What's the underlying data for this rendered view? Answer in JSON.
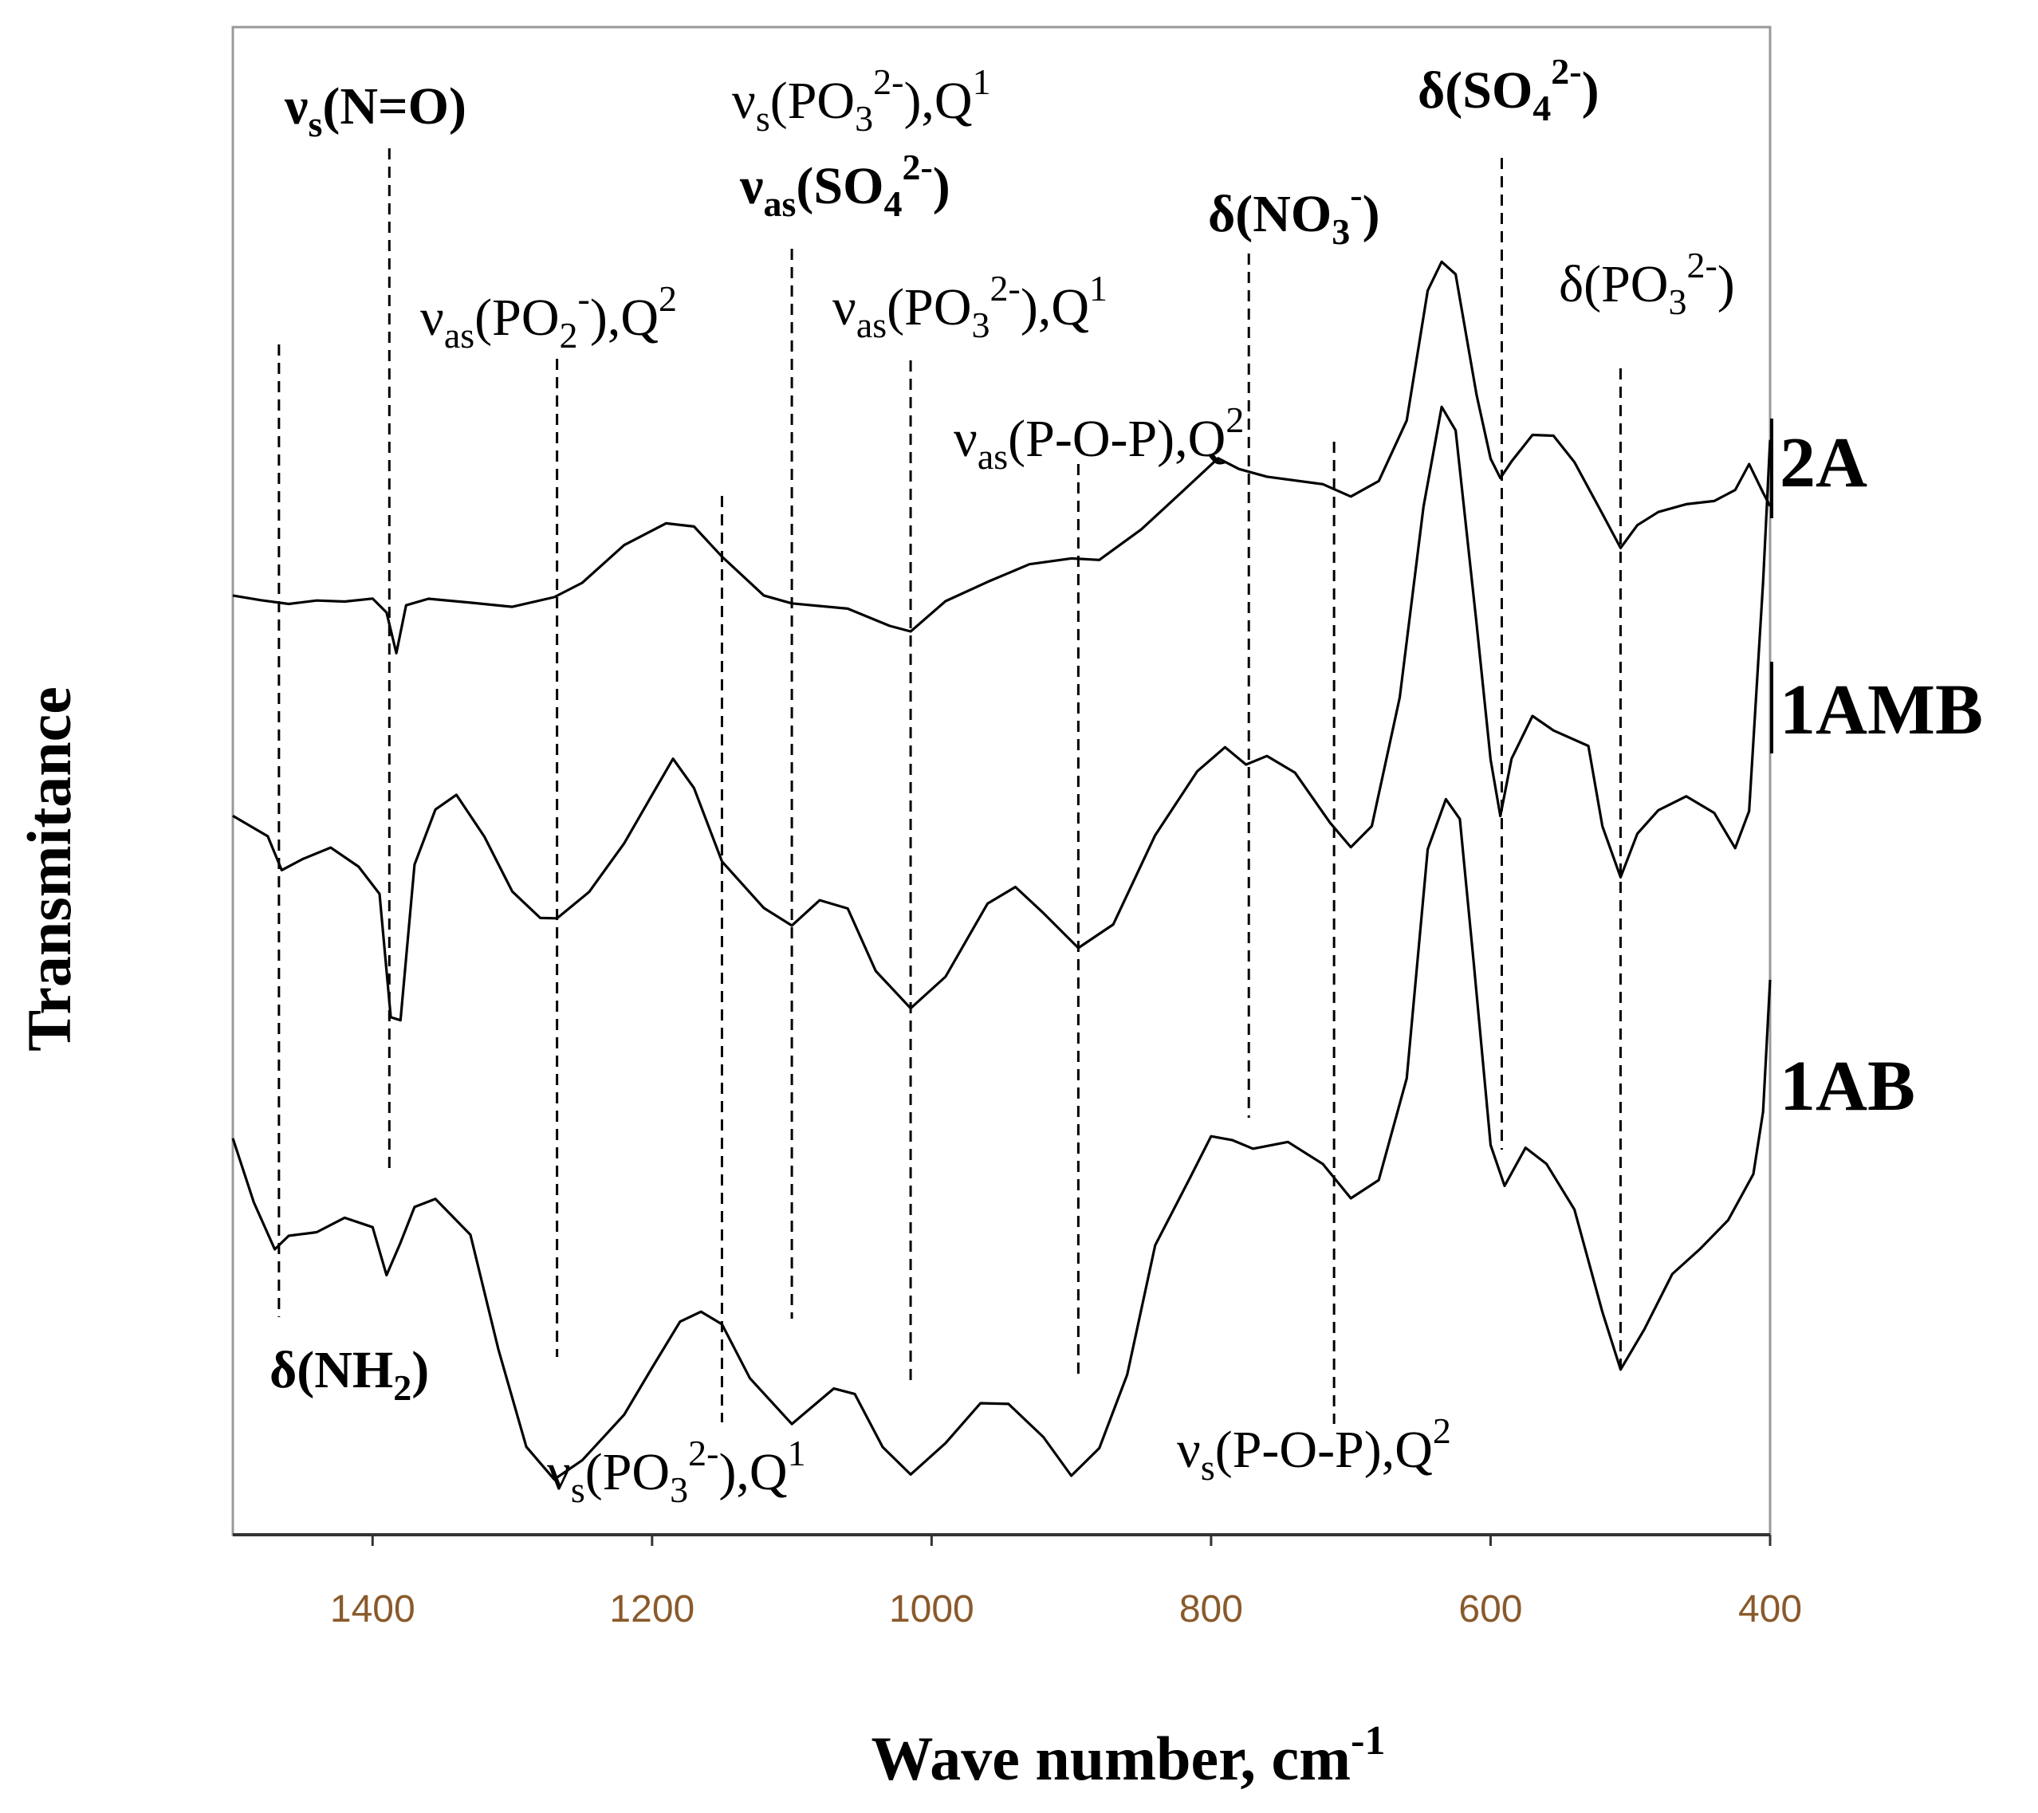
{
  "chart_data": {
    "type": "line",
    "xlabel": "Wave number, cm",
    "xlabel_sup": "-1",
    "ylabel": "Transmitance",
    "xlim": [
      1500,
      400
    ],
    "x_reversed": true,
    "xticks": [
      1400,
      1200,
      1000,
      800,
      600,
      400
    ],
    "grid": false,
    "series": [
      {
        "name": "2A",
        "points": [
          [
            1500,
            -0.32
          ],
          [
            1480,
            -0.36
          ],
          [
            1460,
            -0.4
          ],
          [
            1440,
            -0.38
          ],
          [
            1420,
            -0.4
          ],
          [
            1400,
            -0.38
          ],
          [
            1390,
            -0.47
          ],
          [
            1383,
            -0.86
          ],
          [
            1376,
            -0.43
          ],
          [
            1360,
            -0.38
          ],
          [
            1330,
            -0.4
          ],
          [
            1300,
            -0.42
          ],
          [
            1270,
            -0.36
          ],
          [
            1250,
            -0.22
          ],
          [
            1220,
            0.1
          ],
          [
            1190,
            0.32
          ],
          [
            1170,
            0.28
          ],
          [
            1150,
            0.0
          ],
          [
            1120,
            -0.32
          ],
          [
            1100,
            -0.4
          ],
          [
            1060,
            -0.47
          ],
          [
            1030,
            -0.6
          ],
          [
            1015,
            -0.64
          ],
          [
            990,
            -0.4
          ],
          [
            960,
            -0.2
          ],
          [
            930,
            -0.05
          ],
          [
            900,
            -0.02
          ],
          [
            880,
            -0.03
          ],
          [
            850,
            0.25
          ],
          [
            820,
            0.62
          ],
          [
            795,
            0.88
          ],
          [
            780,
            0.8
          ],
          [
            760,
            0.72
          ],
          [
            720,
            0.65
          ],
          [
            700,
            0.55
          ],
          [
            680,
            0.7
          ],
          [
            660,
            1.25
          ],
          [
            645,
            2.4
          ],
          [
            635,
            2.65
          ],
          [
            625,
            2.55
          ],
          [
            610,
            1.45
          ],
          [
            600,
            0.9
          ],
          [
            593,
            0.7
          ],
          [
            585,
            0.88
          ],
          [
            570,
            1.1
          ],
          [
            555,
            1.08
          ],
          [
            540,
            0.85
          ],
          [
            520,
            0.38
          ],
          [
            507,
            0.1
          ],
          [
            495,
            0.3
          ],
          [
            480,
            0.4
          ],
          [
            460,
            0.48
          ],
          [
            440,
            0.52
          ],
          [
            425,
            0.6
          ],
          [
            415,
            0.85
          ],
          [
            405,
            0.58
          ],
          [
            400,
            0.48
          ]
        ]
      },
      {
        "name": "1AMB",
        "points": [
          [
            1500,
            -0.32
          ],
          [
            1475,
            -0.5
          ],
          [
            1465,
            -0.75
          ],
          [
            1450,
            -0.68
          ],
          [
            1430,
            -0.58
          ],
          [
            1410,
            -0.72
          ],
          [
            1395,
            -0.95
          ],
          [
            1387,
            -1.9
          ],
          [
            1380,
            -1.95
          ],
          [
            1370,
            -0.7
          ],
          [
            1355,
            -0.28
          ],
          [
            1340,
            -0.18
          ],
          [
            1320,
            -0.5
          ],
          [
            1300,
            -0.92
          ],
          [
            1280,
            -1.12
          ],
          [
            1268,
            -1.15
          ],
          [
            1245,
            -0.92
          ],
          [
            1220,
            -0.55
          ],
          [
            1200,
            -0.18
          ],
          [
            1185,
            0.12
          ],
          [
            1170,
            -0.1
          ],
          [
            1150,
            -0.68
          ],
          [
            1120,
            -1.05
          ],
          [
            1100,
            -1.18
          ],
          [
            1080,
            -0.98
          ],
          [
            1060,
            -1.05
          ],
          [
            1040,
            -1.55
          ],
          [
            1015,
            -1.85
          ],
          [
            990,
            -1.58
          ],
          [
            960,
            -1.02
          ],
          [
            940,
            -0.88
          ],
          [
            920,
            -1.08
          ],
          [
            895,
            -1.38
          ],
          [
            870,
            -1.18
          ],
          [
            840,
            -0.5
          ],
          [
            810,
            0.02
          ],
          [
            790,
            0.2
          ],
          [
            775,
            0.08
          ],
          [
            760,
            0.15
          ],
          [
            740,
            0.02
          ],
          [
            715,
            -0.4
          ],
          [
            700,
            -0.58
          ],
          [
            685,
            -0.4
          ],
          [
            665,
            0.6
          ],
          [
            648,
            2.1
          ],
          [
            635,
            2.88
          ],
          [
            625,
            2.68
          ],
          [
            610,
            1.18
          ],
          [
            600,
            0.1
          ],
          [
            593,
            -0.32
          ],
          [
            585,
            0.1
          ],
          [
            570,
            0.45
          ],
          [
            555,
            0.35
          ],
          [
            530,
            0.2
          ],
          [
            520,
            -0.4
          ],
          [
            507,
            -0.82
          ],
          [
            495,
            -0.48
          ],
          [
            480,
            -0.28
          ],
          [
            460,
            -0.18
          ],
          [
            440,
            -0.32
          ],
          [
            425,
            -0.58
          ],
          [
            415,
            -0.3
          ],
          [
            405,
            1.5
          ],
          [
            400,
            2.6
          ]
        ]
      },
      {
        "name": "1AB",
        "points": [
          [
            1500,
            -0.58
          ],
          [
            1485,
            -1.08
          ],
          [
            1470,
            -1.45
          ],
          [
            1460,
            -1.32
          ],
          [
            1440,
            -1.3
          ],
          [
            1420,
            -1.2
          ],
          [
            1400,
            -1.28
          ],
          [
            1390,
            -1.62
          ],
          [
            1380,
            -1.4
          ],
          [
            1370,
            -1.1
          ],
          [
            1355,
            -1.05
          ],
          [
            1330,
            -1.32
          ],
          [
            1310,
            -2.2
          ],
          [
            1290,
            -2.95
          ],
          [
            1270,
            -3.2
          ],
          [
            1250,
            -3.05
          ],
          [
            1220,
            -2.7
          ],
          [
            1200,
            -2.35
          ],
          [
            1180,
            -2.0
          ],
          [
            1165,
            -1.92
          ],
          [
            1150,
            -2.0
          ],
          [
            1130,
            -2.42
          ],
          [
            1100,
            -2.75
          ],
          [
            1070,
            -2.5
          ],
          [
            1055,
            -2.55
          ],
          [
            1035,
            -2.95
          ],
          [
            1015,
            -3.15
          ],
          [
            990,
            -2.9
          ],
          [
            965,
            -2.62
          ],
          [
            945,
            -2.62
          ],
          [
            920,
            -2.85
          ],
          [
            900,
            -3.15
          ],
          [
            880,
            -2.95
          ],
          [
            860,
            -2.4
          ],
          [
            840,
            -1.42
          ],
          [
            815,
            -0.88
          ],
          [
            800,
            -0.58
          ],
          [
            785,
            -0.62
          ],
          [
            770,
            -0.68
          ],
          [
            745,
            -0.62
          ],
          [
            720,
            -0.78
          ],
          [
            700,
            -1.05
          ],
          [
            680,
            -0.92
          ],
          [
            660,
            -0.15
          ],
          [
            645,
            1.6
          ],
          [
            632,
            2.0
          ],
          [
            622,
            1.82
          ],
          [
            612,
            0.75
          ],
          [
            600,
            -0.65
          ],
          [
            590,
            -0.95
          ],
          [
            575,
            -0.65
          ],
          [
            560,
            -0.78
          ],
          [
            540,
            -1.12
          ],
          [
            520,
            -1.9
          ],
          [
            507,
            -2.35
          ],
          [
            490,
            -2.05
          ],
          [
            470,
            -1.62
          ],
          [
            450,
            -1.42
          ],
          [
            430,
            -1.2
          ],
          [
            412,
            -0.85
          ],
          [
            405,
            -0.4
          ],
          [
            400,
            0.6
          ]
        ]
      }
    ],
    "guide_lines": [
      {
        "x": 1467,
        "y_top": 432,
        "y_bottom": 1652
      },
      {
        "x": 1388,
        "y_top": 186,
        "y_bottom": 1466
      },
      {
        "x": 1268,
        "y_top": 450,
        "y_bottom": 1702
      },
      {
        "x": 1150,
        "y_top": 622,
        "y_bottom": 1784
      },
      {
        "x": 1100,
        "y_top": 312,
        "y_bottom": 1654
      },
      {
        "x": 1015,
        "y_top": 452,
        "y_bottom": 1740
      },
      {
        "x": 895,
        "y_top": 582,
        "y_bottom": 1726
      },
      {
        "x": 773,
        "y_top": 318,
        "y_bottom": 1402
      },
      {
        "x": 712,
        "y_top": 554,
        "y_bottom": 1786
      },
      {
        "x": 592,
        "y_top": 198,
        "y_bottom": 1442
      },
      {
        "x": 507,
        "y_top": 462,
        "y_bottom": 1720
      }
    ],
    "annotations": [
      {
        "sym": "ν",
        "sub": "s",
        "main": "(N=O)",
        "sup": "",
        "tail": "",
        "bold": true
      },
      {
        "sym": "ν",
        "sub": "s",
        "main": "(PO",
        "sub2": "3",
        "sup": "2-",
        "tail": "),Q",
        "sup2": "1",
        "bold": false
      },
      {
        "sym": "ν",
        "sub": "as",
        "main": "(SO",
        "sub2": "4",
        "sup": "2-",
        "tail": ")",
        "bold": true
      },
      {
        "sym": "δ",
        "sub": "",
        "main": "(SO",
        "sub2": "4",
        "sup": "2-",
        "tail": ")",
        "bold": true
      },
      {
        "sym": "δ",
        "sub": "",
        "main": "(NO",
        "sub2": "3",
        "sup": "-",
        "tail": ")",
        "bold": true
      },
      {
        "sym": "δ",
        "sub": "",
        "main": "(PO",
        "sub2": "3",
        "sup": "2-",
        "tail": ")",
        "bold": false
      },
      {
        "sym": "ν",
        "sub": "as",
        "main": "(PO",
        "sub2": "2",
        "sup": "-",
        "tail": "),Q",
        "sup2": "2",
        "bold": false
      },
      {
        "sym": "ν",
        "sub": "as",
        "main": "(PO",
        "sub2": "3",
        "sup": "2-",
        "tail": "),Q",
        "sup2": "1",
        "bold": false
      },
      {
        "sym": "ν",
        "sub": "as",
        "main": "(P-O-P),Q",
        "sup": "2",
        "tail": "",
        "bold": false
      },
      {
        "sym": "δ",
        "sub": "",
        "main": "(NH",
        "sub2": "2",
        "sup": "",
        "tail": ")",
        "bold": true
      },
      {
        "sym": "ν",
        "sub": "s",
        "main": "(PO",
        "sub2": "3",
        "sup": "2-",
        "tail": "),Q",
        "sup2": "1",
        "bold": false
      },
      {
        "sym": "ν",
        "sub": "s",
        "main": "(P-O-P),Q",
        "sup": "2",
        "tail": "",
        "bold": false
      }
    ]
  }
}
